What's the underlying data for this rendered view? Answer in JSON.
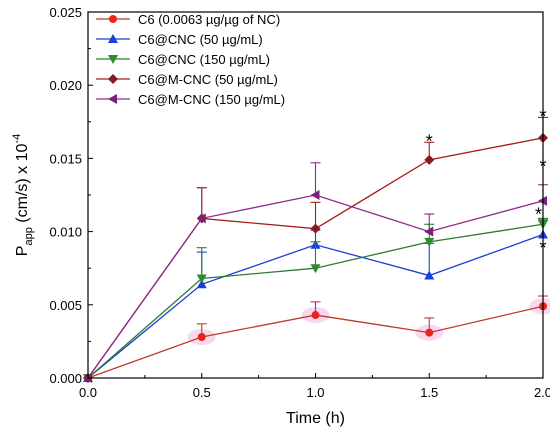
{
  "chart_data": {
    "type": "line",
    "xlabel": "Time (h)",
    "ylabel": {
      "base": "P",
      "sub": "app",
      "rest": " (cm/s) x 10",
      "sup": "-4"
    },
    "xlim": [
      0,
      2.0
    ],
    "ylim": [
      0,
      0.025
    ],
    "xticks": [
      "0.0",
      "0.5",
      "1.0",
      "1.5",
      "2.0"
    ],
    "yticks": [
      "0.000",
      "0.005",
      "0.010",
      "0.015",
      "0.020",
      "0.025"
    ],
    "grid": false,
    "legend_position": "top-left",
    "series": [
      {
        "name": "C6 (0.0063 µg/µg of NC)",
        "color": "#c0392b",
        "marker_color": "#e8241e",
        "marker": "circle",
        "x": [
          0,
          0.5,
          1.0,
          1.5,
          2.0
        ],
        "y": [
          0,
          0.0028,
          0.0043,
          0.0031,
          0.0049
        ],
        "err": [
          0,
          0.0009,
          0.0009,
          0.001,
          0.0007
        ]
      },
      {
        "name": "C6@CNC (50 µg/mL)",
        "color": "#1a3fd6",
        "marker_color": "#1a3fd6",
        "marker": "triangle-up",
        "x": [
          0,
          0.5,
          1.0,
          1.5,
          2.0
        ],
        "y": [
          0,
          0.0064,
          0.0091,
          0.007,
          0.0098
        ],
        "err": [
          0,
          0.0022,
          0.001,
          0.0022,
          0.001
        ]
      },
      {
        "name": "C6@CNC (150 µg/mL)",
        "color": "#2e7d32",
        "marker_color": "#2e8b2e",
        "marker": "triangle-down",
        "x": [
          0,
          0.5,
          1.0,
          1.5,
          2.0
        ],
        "y": [
          0,
          0.0068,
          0.0075,
          0.0093,
          0.0105
        ],
        "err": [
          0,
          0.0021,
          0.0018,
          0.0012,
          0.0004
        ]
      },
      {
        "name": "C6@M-CNC (50 µg/mL)",
        "color": "#a61c1c",
        "marker_color": "#8b1a1a",
        "marker": "diamond",
        "x": [
          0,
          0.5,
          1.0,
          1.5,
          2.0
        ],
        "y": [
          0,
          0.0109,
          0.0102,
          0.0149,
          0.0164
        ],
        "err": [
          0,
          0.0021,
          0.0018,
          0.0012,
          0.0014
        ]
      },
      {
        "name": "C6@M-CNC (150 µg/mL)",
        "color": "#8e2a8e",
        "marker_color": "#7b237b",
        "marker": "triangle-left",
        "x": [
          0,
          0.5,
          1.0,
          1.5,
          2.0
        ],
        "y": [
          0,
          0.0109,
          0.0125,
          0.01,
          0.0121
        ],
        "err": [
          0,
          0.0021,
          0.0022,
          0.0012,
          0.0011
        ]
      }
    ],
    "annotations": [
      {
        "text": "*",
        "x": 1.5,
        "y": 0.0163
      },
      {
        "text": "*",
        "x": 2.0,
        "y": 0.018
      },
      {
        "text": "*",
        "x": 2.0,
        "y": 0.0146
      },
      {
        "text": "*",
        "x": 1.98,
        "y": 0.0113
      },
      {
        "text": "*",
        "x": 2.0,
        "y": 0.009
      }
    ]
  }
}
